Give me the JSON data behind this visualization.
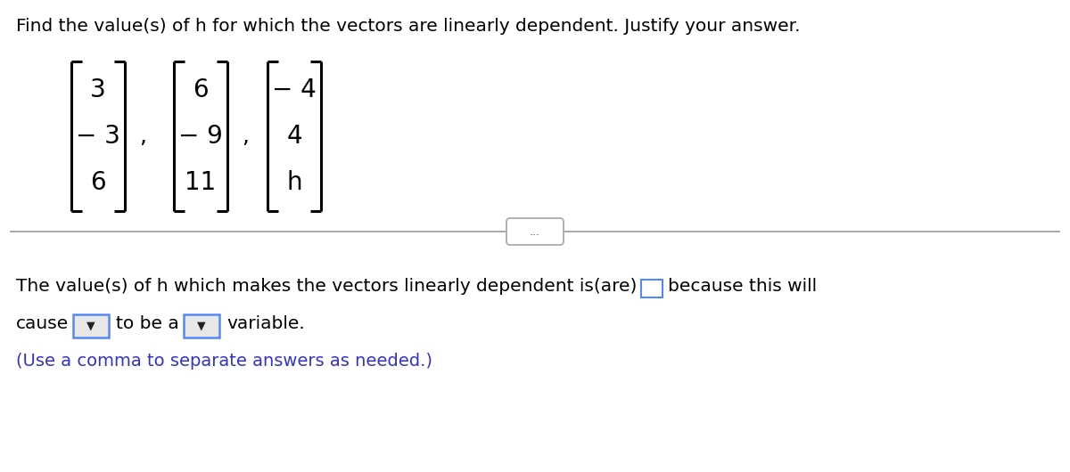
{
  "title": "Find the value(s) of h for which the vectors are linearly dependent. Justify your answer.",
  "title_fontsize": 14.5,
  "title_color": "#000000",
  "background_color": "#ffffff",
  "vector1": [
    "3",
    "− 3",
    "6"
  ],
  "vector2": [
    "6",
    "− 9",
    "11"
  ],
  "vector3": [
    "− 4",
    "4",
    "h"
  ],
  "separator_text": "...",
  "bottom_text1": "The value(s) of h which makes the vectors linearly dependent is(are)",
  "bottom_text2": "because this will",
  "bottom_text3": "cause",
  "bottom_text4": "to be a",
  "bottom_text5": "variable.",
  "note_text": "(Use a comma to separate answers as needed.)",
  "note_color": "#3333cc",
  "text_color": "#000000",
  "font_size_body": 14.5,
  "font_size_note": 14.0,
  "bracket_color": "#000000",
  "divider_color": "#999999",
  "box_edge_color": "#5588ff",
  "dropdown_bg": "#e8e8e8",
  "dropdown_edge": "#5588ff"
}
